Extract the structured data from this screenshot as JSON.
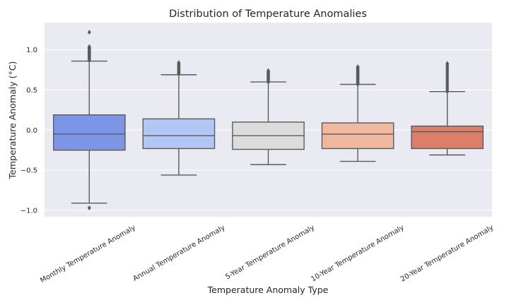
{
  "chart_data": {
    "type": "box",
    "title": "Distribution of Temperature Anomalies",
    "xlabel": "Temperature Anomaly Type",
    "ylabel": "Temperature Anomaly (°C)",
    "ylim": [
      -1.08,
      1.34
    ],
    "yticks": [
      -1.0,
      -0.5,
      0.0,
      0.5,
      1.0
    ],
    "ytick_labels": [
      "−1.0",
      "−0.5",
      "0.0",
      "0.5",
      "1.0"
    ],
    "grid": true,
    "style": "seaborn-darkgrid",
    "categories": [
      "Monthly Temperature Anomaly",
      "Annual Temperature Anomaly",
      "5-Year Temperature Anomaly",
      "10-Year Temperature Anomaly",
      "20-Year Temperature Anomaly"
    ],
    "boxes": [
      {
        "whisker_low": -0.91,
        "q1": -0.25,
        "median": -0.05,
        "q3": 0.19,
        "whisker_high": 0.86,
        "outliers": [
          -0.97,
          0.87,
          0.88,
          0.89,
          0.9,
          0.91,
          0.92,
          0.93,
          0.94,
          0.95,
          0.96,
          0.97,
          0.98,
          0.99,
          1.0,
          1.01,
          1.02,
          1.03,
          1.04,
          1.22
        ],
        "color": "#7b95e7"
      },
      {
        "whisker_low": -0.56,
        "q1": -0.23,
        "median": -0.07,
        "q3": 0.14,
        "whisker_high": 0.69,
        "outliers": [
          0.7,
          0.71,
          0.72,
          0.73,
          0.74,
          0.75,
          0.76,
          0.77,
          0.78,
          0.79,
          0.8,
          0.81,
          0.82,
          0.83,
          0.84
        ],
        "color": "#b1c7f5"
      },
      {
        "whisker_low": -0.43,
        "q1": -0.24,
        "median": -0.07,
        "q3": 0.1,
        "whisker_high": 0.6,
        "outliers": [
          0.6,
          0.61,
          0.62,
          0.63,
          0.64,
          0.65,
          0.66,
          0.67,
          0.68,
          0.69,
          0.7,
          0.71,
          0.72,
          0.73,
          0.74
        ],
        "color": "#dcdcdc"
      },
      {
        "whisker_low": -0.39,
        "q1": -0.23,
        "median": -0.05,
        "q3": 0.09,
        "whisker_high": 0.57,
        "outliers": [
          0.57,
          0.58,
          0.59,
          0.6,
          0.61,
          0.62,
          0.63,
          0.64,
          0.65,
          0.66,
          0.67,
          0.68,
          0.69,
          0.7,
          0.71,
          0.72,
          0.73,
          0.74,
          0.75,
          0.76,
          0.77,
          0.78,
          0.79
        ],
        "color": "#f0b89e"
      },
      {
        "whisker_low": -0.31,
        "q1": -0.23,
        "median": -0.02,
        "q3": 0.05,
        "whisker_high": 0.48,
        "outliers": [
          0.48,
          0.5,
          0.52,
          0.54,
          0.56,
          0.58,
          0.6,
          0.62,
          0.64,
          0.66,
          0.68,
          0.7,
          0.72,
          0.74,
          0.76,
          0.78,
          0.8,
          0.82,
          0.83
        ],
        "color": "#dc7e69"
      }
    ],
    "colors": {
      "plot_bg": "#eaeaf2",
      "grid": "#ffffff",
      "line": "#5a5a5a"
    }
  }
}
